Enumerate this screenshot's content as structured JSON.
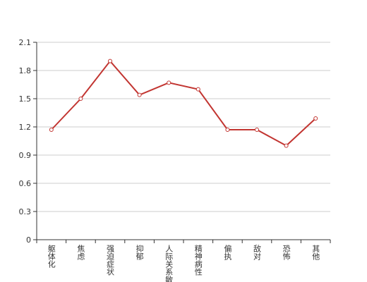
{
  "chart_data": {
    "type": "line",
    "categories": [
      "躯体化",
      "焦虑",
      "强迫症状",
      "抑郁",
      "人际关系敏感",
      "精神病性",
      "偏执",
      "敌对",
      "恐怖",
      "其他"
    ],
    "values": [
      1.17,
      1.5,
      1.9,
      1.54,
      1.67,
      1.6,
      1.17,
      1.17,
      1.0,
      1.29
    ],
    "color": "#c23531",
    "ylim": [
      0,
      2.1
    ],
    "yticks": [
      0,
      0.3,
      0.6,
      0.9,
      1.2,
      1.5,
      1.8,
      2.1
    ],
    "grid": true
  }
}
